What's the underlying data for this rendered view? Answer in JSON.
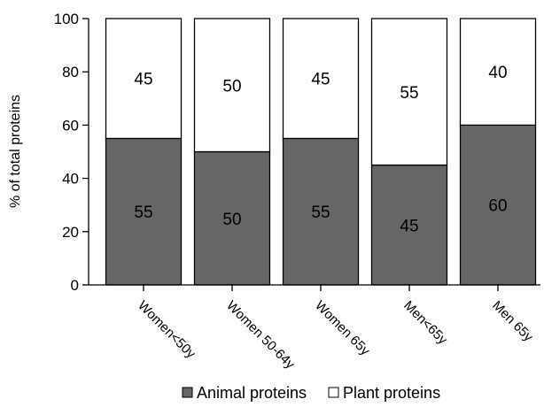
{
  "chart_data": {
    "type": "bar",
    "stacked": true,
    "categories": [
      "Women<50y",
      "Women 50-64y",
      "Women  65y",
      "Men<65y",
      "Men  65y"
    ],
    "series": [
      {
        "name": "Animal proteins",
        "values": [
          55,
          50,
          55,
          45,
          60
        ],
        "color": "#666666"
      },
      {
        "name": "Plant proteins",
        "values": [
          45,
          50,
          45,
          55,
          40
        ],
        "color": "#ffffff"
      }
    ],
    "ylabel": "% of total proteins",
    "xlabel": "",
    "ylim": [
      0,
      100
    ],
    "yticks": [
      0,
      20,
      40,
      60,
      80,
      100
    ],
    "grid": false,
    "legend": "bottom"
  }
}
